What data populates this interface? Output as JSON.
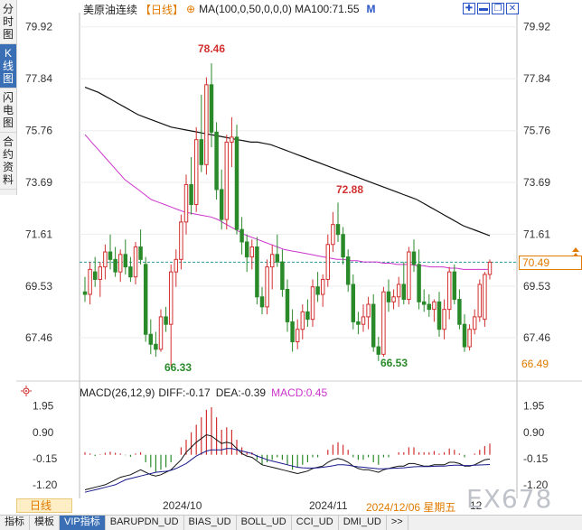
{
  "side_tabs": [
    "分时图",
    "K线图",
    "闪电图",
    "合约资料"
  ],
  "header": {
    "symbol": "美原油连续",
    "period": "【日线】",
    "plus_icon": "⊕",
    "ma_label": "MA(100,0,50,0,0,0) MA100:71.55",
    "dropdown": "M"
  },
  "price_axis": {
    "ticks": [
      "79.92",
      "77.84",
      "75.76",
      "73.69",
      "71.61",
      "69.53",
      "67.46"
    ],
    "current_price": "70.49",
    "low_price": "66.49"
  },
  "annotations": {
    "high1": "78.46",
    "high2": "72.88",
    "low1": "66.33",
    "low2": "66.53"
  },
  "macd": {
    "title": "MACD(26,12,9)",
    "diff": "DIFF:-0.17",
    "dea": "DEA:-0.39",
    "macd": "MACD:0.45",
    "ticks": [
      "1.95",
      "0.90",
      "-0.15",
      "-1.20"
    ]
  },
  "bottom": {
    "period_button": "日线",
    "date1": "2024/10",
    "date2": "2024/11",
    "cursor_date": "2024/12/06 星期五",
    "date3": "12",
    "watermark": "EX678"
  },
  "indicator_tabs": [
    "指标",
    "模板",
    "VIP指标",
    "BARUPDN_UD",
    "BIAS_UD",
    "BOLL_UD",
    "CCI_UD",
    "DMI_UD",
    ">>"
  ],
  "colors": {
    "up": "#d23030",
    "down": "#2a8a2a",
    "ma_slow": "#111111",
    "ma_mid": "#cc33cc",
    "accent": "#e07a00",
    "dea": "#1a1a8c",
    "diff": "#111111"
  },
  "chart_data": {
    "type": "candlestick",
    "ylim": [
      65.8,
      80.2
    ],
    "candles": [
      {
        "o": 69.3,
        "h": 69.9,
        "l": 68.9,
        "c": 69.2
      },
      {
        "o": 69.2,
        "h": 70.5,
        "l": 68.8,
        "c": 70.2
      },
      {
        "o": 70.1,
        "h": 70.7,
        "l": 69.5,
        "c": 69.8
      },
      {
        "o": 69.8,
        "h": 70.5,
        "l": 69.1,
        "c": 70.3
      },
      {
        "o": 70.3,
        "h": 71.2,
        "l": 69.8,
        "c": 70.9
      },
      {
        "o": 70.9,
        "h": 71.6,
        "l": 70.2,
        "c": 70.6
      },
      {
        "o": 70.6,
        "h": 71.1,
        "l": 69.9,
        "c": 70.1
      },
      {
        "o": 70.1,
        "h": 71.0,
        "l": 69.7,
        "c": 70.8
      },
      {
        "o": 70.8,
        "h": 71.4,
        "l": 70.0,
        "c": 70.3
      },
      {
        "o": 70.3,
        "h": 70.7,
        "l": 69.7,
        "c": 69.9
      },
      {
        "o": 69.9,
        "h": 71.3,
        "l": 69.6,
        "c": 71.1
      },
      {
        "o": 71.1,
        "h": 71.8,
        "l": 70.4,
        "c": 70.6
      },
      {
        "o": 70.4,
        "h": 70.7,
        "l": 67.3,
        "c": 67.6
      },
      {
        "o": 67.6,
        "h": 68.2,
        "l": 66.8,
        "c": 67.2
      },
      {
        "o": 67.2,
        "h": 67.7,
        "l": 66.7,
        "c": 67.0
      },
      {
        "o": 67.0,
        "h": 68.6,
        "l": 66.9,
        "c": 68.3
      },
      {
        "o": 68.3,
        "h": 68.7,
        "l": 67.7,
        "c": 68.0
      },
      {
        "o": 68.0,
        "h": 70.4,
        "l": 66.3,
        "c": 70.1
      },
      {
        "o": 70.1,
        "h": 71.0,
        "l": 69.5,
        "c": 70.6
      },
      {
        "o": 70.6,
        "h": 72.4,
        "l": 70.2,
        "c": 72.1
      },
      {
        "o": 72.1,
        "h": 74.0,
        "l": 71.6,
        "c": 73.6
      },
      {
        "o": 73.6,
        "h": 74.7,
        "l": 72.4,
        "c": 72.8
      },
      {
        "o": 72.8,
        "h": 75.9,
        "l": 72.5,
        "c": 75.4
      },
      {
        "o": 75.4,
        "h": 77.2,
        "l": 74.1,
        "c": 74.4
      },
      {
        "o": 74.4,
        "h": 77.9,
        "l": 74.0,
        "c": 77.6
      },
      {
        "o": 77.6,
        "h": 78.46,
        "l": 75.1,
        "c": 75.7
      },
      {
        "o": 75.7,
        "h": 76.1,
        "l": 73.0,
        "c": 73.4
      },
      {
        "o": 73.4,
        "h": 74.2,
        "l": 71.8,
        "c": 72.2
      },
      {
        "o": 72.2,
        "h": 75.6,
        "l": 71.8,
        "c": 75.3
      },
      {
        "o": 75.3,
        "h": 76.3,
        "l": 74.3,
        "c": 75.5
      },
      {
        "o": 75.5,
        "h": 76.0,
        "l": 71.6,
        "c": 71.8
      },
      {
        "o": 71.8,
        "h": 72.3,
        "l": 70.8,
        "c": 71.3
      },
      {
        "o": 71.3,
        "h": 71.6,
        "l": 70.1,
        "c": 70.7
      },
      {
        "o": 70.7,
        "h": 71.4,
        "l": 70.2,
        "c": 71.1
      },
      {
        "o": 71.1,
        "h": 71.5,
        "l": 68.8,
        "c": 69.1
      },
      {
        "o": 69.1,
        "h": 69.5,
        "l": 68.4,
        "c": 68.7
      },
      {
        "o": 68.7,
        "h": 70.6,
        "l": 68.4,
        "c": 70.3
      },
      {
        "o": 70.3,
        "h": 71.2,
        "l": 69.4,
        "c": 70.8
      },
      {
        "o": 70.8,
        "h": 71.6,
        "l": 70.3,
        "c": 70.5
      },
      {
        "o": 70.5,
        "h": 71.0,
        "l": 69.1,
        "c": 69.4
      },
      {
        "o": 69.4,
        "h": 69.8,
        "l": 67.7,
        "c": 68.1
      },
      {
        "o": 68.1,
        "h": 68.6,
        "l": 66.9,
        "c": 67.3
      },
      {
        "o": 67.3,
        "h": 68.2,
        "l": 67.0,
        "c": 67.8
      },
      {
        "o": 67.8,
        "h": 68.8,
        "l": 67.4,
        "c": 68.5
      },
      {
        "o": 68.5,
        "h": 69.0,
        "l": 67.9,
        "c": 68.2
      },
      {
        "o": 68.2,
        "h": 69.8,
        "l": 67.9,
        "c": 69.5
      },
      {
        "o": 69.5,
        "h": 70.1,
        "l": 68.9,
        "c": 69.2
      },
      {
        "o": 69.2,
        "h": 70.0,
        "l": 68.7,
        "c": 69.8
      },
      {
        "o": 69.8,
        "h": 71.6,
        "l": 69.5,
        "c": 71.2
      },
      {
        "o": 71.2,
        "h": 72.5,
        "l": 70.9,
        "c": 72.0
      },
      {
        "o": 72.0,
        "h": 72.88,
        "l": 71.3,
        "c": 71.6
      },
      {
        "o": 71.6,
        "h": 71.9,
        "l": 70.4,
        "c": 70.7
      },
      {
        "o": 70.7,
        "h": 71.0,
        "l": 69.3,
        "c": 69.6
      },
      {
        "o": 69.6,
        "h": 70.0,
        "l": 67.8,
        "c": 68.1
      },
      {
        "o": 68.1,
        "h": 68.5,
        "l": 67.6,
        "c": 68.0
      },
      {
        "o": 68.0,
        "h": 68.8,
        "l": 67.7,
        "c": 68.3
      },
      {
        "o": 68.3,
        "h": 69.1,
        "l": 67.8,
        "c": 68.8
      },
      {
        "o": 68.8,
        "h": 69.2,
        "l": 66.9,
        "c": 67.1
      },
      {
        "o": 67.1,
        "h": 67.5,
        "l": 66.53,
        "c": 66.8
      },
      {
        "o": 66.8,
        "h": 69.5,
        "l": 66.7,
        "c": 69.3
      },
      {
        "o": 69.3,
        "h": 69.8,
        "l": 68.5,
        "c": 68.9
      },
      {
        "o": 68.9,
        "h": 69.4,
        "l": 68.6,
        "c": 69.1
      },
      {
        "o": 69.1,
        "h": 69.9,
        "l": 68.7,
        "c": 69.6
      },
      {
        "o": 69.6,
        "h": 70.5,
        "l": 68.8,
        "c": 69.0
      },
      {
        "o": 69.0,
        "h": 71.1,
        "l": 68.8,
        "c": 70.9
      },
      {
        "o": 70.9,
        "h": 71.4,
        "l": 70.1,
        "c": 70.4
      },
      {
        "o": 70.4,
        "h": 71.0,
        "l": 68.6,
        "c": 68.9
      },
      {
        "o": 68.9,
        "h": 69.4,
        "l": 68.5,
        "c": 68.8
      },
      {
        "o": 68.8,
        "h": 69.2,
        "l": 68.3,
        "c": 68.6
      },
      {
        "o": 68.6,
        "h": 69.0,
        "l": 68.1,
        "c": 68.9
      },
      {
        "o": 68.9,
        "h": 69.3,
        "l": 67.5,
        "c": 67.8
      },
      {
        "o": 67.8,
        "h": 69.0,
        "l": 67.4,
        "c": 68.6
      },
      {
        "o": 68.6,
        "h": 70.3,
        "l": 68.2,
        "c": 70.1
      },
      {
        "o": 70.1,
        "h": 70.4,
        "l": 68.8,
        "c": 69.0
      },
      {
        "o": 69.0,
        "h": 69.4,
        "l": 67.8,
        "c": 68.0
      },
      {
        "o": 68.0,
        "h": 68.4,
        "l": 66.9,
        "c": 67.1
      },
      {
        "o": 67.1,
        "h": 68.0,
        "l": 66.95,
        "c": 67.8
      },
      {
        "o": 67.8,
        "h": 68.6,
        "l": 67.6,
        "c": 68.3
      },
      {
        "o": 68.3,
        "h": 69.8,
        "l": 68.1,
        "c": 69.6
      },
      {
        "o": 68.2,
        "h": 70.1,
        "l": 67.9,
        "c": 70.0
      },
      {
        "o": 70.0,
        "h": 70.6,
        "l": 69.8,
        "c": 70.49
      }
    ],
    "ma_slow": [
      77.5,
      77.4,
      77.3,
      77.15,
      77.0,
      76.85,
      76.7,
      76.55,
      76.4,
      76.3,
      76.2,
      76.1,
      76.0,
      75.9,
      75.85,
      75.8,
      75.75,
      75.7,
      75.65,
      75.6,
      75.55,
      75.5,
      75.45,
      75.4,
      75.35,
      75.3,
      75.3,
      75.25,
      75.2,
      75.1,
      75.0,
      74.9,
      74.8,
      74.7,
      74.6,
      74.5,
      74.4,
      74.3,
      74.2,
      74.1,
      74.0,
      73.9,
      73.8,
      73.7,
      73.6,
      73.5,
      73.4,
      73.3,
      73.2,
      73.1,
      73.0,
      72.85,
      72.7,
      72.55,
      72.4,
      72.25,
      72.1,
      71.95,
      71.85,
      71.75,
      71.65,
      71.55
    ],
    "ma_mid": [
      75.6,
      75.3,
      75.0,
      74.7,
      74.4,
      74.1,
      73.8,
      73.6,
      73.4,
      73.2,
      73.0,
      72.9,
      72.8,
      72.7,
      72.6,
      72.5,
      72.45,
      72.4,
      72.35,
      72.3,
      72.2,
      72.05,
      71.9,
      71.75,
      71.6,
      71.5,
      71.4,
      71.3,
      71.2,
      71.1,
      71.0,
      70.95,
      70.9,
      70.85,
      70.8,
      70.75,
      70.7,
      70.65,
      70.6,
      70.6,
      70.55,
      70.55,
      70.5,
      70.5,
      70.5,
      70.45,
      70.45,
      70.4,
      70.4,
      70.4,
      70.35,
      70.35,
      70.3,
      70.3,
      70.3,
      70.25,
      70.25,
      70.2,
      70.2,
      70.2,
      70.2,
      70.2
    ],
    "macd_hist": [
      0.1,
      0.05,
      -0.05,
      0.02,
      0.08,
      0.12,
      0.08,
      0.05,
      -0.02,
      -0.08,
      0.05,
      0.1,
      -0.3,
      -0.5,
      -0.7,
      -0.6,
      -0.5,
      -0.3,
      0.0,
      0.3,
      0.6,
      0.9,
      1.2,
      1.5,
      1.8,
      1.9,
      1.5,
      1.0,
      1.1,
      1.0,
      0.6,
      0.3,
      0.1,
      0.1,
      -0.2,
      -0.4,
      -0.3,
      -0.2,
      -0.1,
      -0.2,
      -0.4,
      -0.6,
      -0.5,
      -0.4,
      -0.3,
      -0.1,
      -0.1,
      0.0,
      0.2,
      0.4,
      0.5,
      0.4,
      0.2,
      -0.1,
      -0.2,
      -0.2,
      -0.1,
      -0.3,
      -0.4,
      -0.1,
      -0.1,
      0.0,
      0.1,
      0.1,
      0.3,
      0.3,
      0.1,
      0.1,
      0.1,
      0.15,
      0.05,
      0.1,
      0.25,
      0.2,
      0.05,
      -0.1,
      0.0,
      0.05,
      0.2,
      0.35,
      0.45
    ],
    "diff": [
      -1.4,
      -1.35,
      -1.3,
      -1.25,
      -1.2,
      -1.1,
      -1.0,
      -0.9,
      -0.85,
      -0.8,
      -0.7,
      -0.6,
      -0.7,
      -0.8,
      -0.85,
      -0.8,
      -0.7,
      -0.6,
      -0.4,
      -0.2,
      0.1,
      0.3,
      0.5,
      0.65,
      0.8,
      0.75,
      0.6,
      0.45,
      0.5,
      0.45,
      0.25,
      0.05,
      -0.05,
      -0.1,
      -0.25,
      -0.4,
      -0.45,
      -0.5,
      -0.55,
      -0.6,
      -0.65,
      -0.7,
      -0.75,
      -0.7,
      -0.65,
      -0.55,
      -0.5,
      -0.45,
      -0.3,
      -0.2,
      -0.15,
      -0.2,
      -0.3,
      -0.45,
      -0.55,
      -0.6,
      -0.6,
      -0.65,
      -0.7,
      -0.6,
      -0.55,
      -0.5,
      -0.45,
      -0.45,
      -0.35,
      -0.35,
      -0.4,
      -0.45,
      -0.45,
      -0.4,
      -0.4,
      -0.4,
      -0.3,
      -0.3,
      -0.35,
      -0.45,
      -0.45,
      -0.4,
      -0.3,
      -0.2,
      -0.17
    ],
    "dea": [
      -1.5,
      -1.45,
      -1.4,
      -1.35,
      -1.3,
      -1.25,
      -1.2,
      -1.1,
      -1.0,
      -0.95,
      -0.9,
      -0.85,
      -0.8,
      -0.75,
      -0.7,
      -0.68,
      -0.66,
      -0.62,
      -0.55,
      -0.45,
      -0.35,
      -0.2,
      -0.05,
      0.05,
      0.15,
      0.2,
      0.2,
      0.2,
      0.25,
      0.25,
      0.2,
      0.15,
      0.1,
      0.05,
      -0.05,
      -0.12,
      -0.2,
      -0.25,
      -0.3,
      -0.35,
      -0.4,
      -0.45,
      -0.5,
      -0.52,
      -0.53,
      -0.53,
      -0.52,
      -0.5,
      -0.47,
      -0.44,
      -0.4,
      -0.4,
      -0.42,
      -0.45,
      -0.48,
      -0.5,
      -0.52,
      -0.54,
      -0.56,
      -0.56,
      -0.55,
      -0.54,
      -0.53,
      -0.52,
      -0.5,
      -0.48,
      -0.47,
      -0.47,
      -0.47,
      -0.46,
      -0.45,
      -0.45,
      -0.43,
      -0.42,
      -0.42,
      -0.43,
      -0.43,
      -0.42,
      -0.41,
      -0.4,
      -0.39
    ],
    "macd_ylim": [
      -1.6,
      2.3
    ]
  }
}
